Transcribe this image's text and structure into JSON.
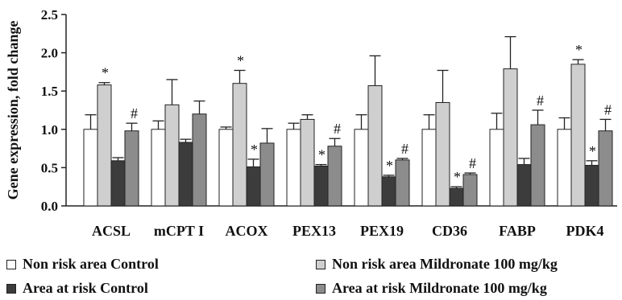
{
  "chart_data": {
    "type": "bar",
    "title": "",
    "xlabel": "",
    "ylabel": "Gene expression, fold change",
    "ylim": [
      0,
      2.5
    ],
    "yticks": [
      "0.0",
      "0.5",
      "1.0",
      "1.5",
      "2.0",
      "2.5"
    ],
    "grid": false,
    "legend_position": "bottom",
    "categories": [
      "ACSL",
      "mCPT I",
      "ACOX",
      "PEX13",
      "PEX19",
      "CD36",
      "FABP",
      "PDK4"
    ],
    "series": [
      {
        "name": "Non risk area Control",
        "color": "#ffffff",
        "values": [
          1.0,
          1.0,
          1.0,
          1.0,
          1.0,
          1.0,
          1.0,
          1.0
        ],
        "errors": [
          0.19,
          0.11,
          0.03,
          0.08,
          0.19,
          0.19,
          0.21,
          0.15
        ],
        "markers": [
          "",
          "",
          "",
          "",
          "",
          "",
          "",
          ""
        ]
      },
      {
        "name": "Non risk area Mildronate 100 mg/kg",
        "color": "#cfcfcf",
        "values": [
          1.58,
          1.32,
          1.6,
          1.13,
          1.57,
          1.35,
          1.79,
          1.85
        ],
        "errors": [
          0.03,
          0.33,
          0.17,
          0.06,
          0.39,
          0.42,
          0.42,
          0.06
        ],
        "markers": [
          "*",
          "",
          "*",
          "",
          "",
          "",
          "",
          "*"
        ]
      },
      {
        "name": "Area at risk Control",
        "color": "#3c3c3c",
        "values": [
          0.59,
          0.83,
          0.51,
          0.52,
          0.38,
          0.23,
          0.54,
          0.53
        ],
        "errors": [
          0.04,
          0.04,
          0.1,
          0.02,
          0.02,
          0.02,
          0.08,
          0.06
        ],
        "markers": [
          "",
          "",
          "*",
          "*",
          "*",
          "*",
          "",
          "*"
        ]
      },
      {
        "name": "Area at risk Mildronate 100 mg/kg",
        "color": "#8c8c8c",
        "values": [
          0.98,
          1.2,
          0.82,
          0.78,
          0.6,
          0.41,
          1.06,
          0.98
        ],
        "errors": [
          0.1,
          0.17,
          0.19,
          0.1,
          0.02,
          0.02,
          0.19,
          0.15
        ],
        "markers": [
          "#",
          "",
          "",
          "#",
          "#",
          "#",
          "#",
          "#"
        ]
      }
    ]
  }
}
